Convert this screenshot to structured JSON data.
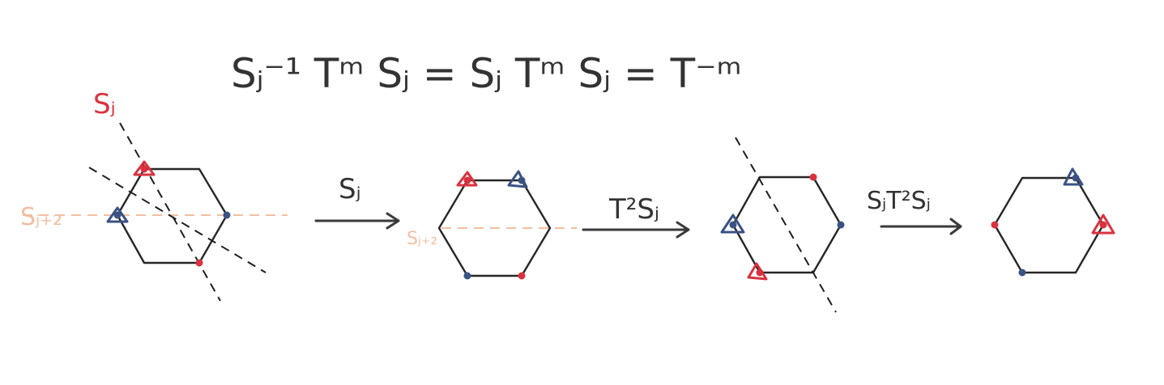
{
  "equation": "Sⱼ⁻¹ Tᵐ Sⱼ = Sⱼ Tᵐ Sⱼ = T⁻ᵐ",
  "labels": {
    "reflection_axis": "Sⱼ",
    "reflection_axis_shifted": "Sⱼ₊₂",
    "reflection_axis_shifted_small": "Sⱼ₊₂"
  },
  "arrows": [
    {
      "label": "Sⱼ"
    },
    {
      "label": "T²Sⱼ"
    },
    {
      "label": "SⱼT²Sⱼ"
    }
  ],
  "colors": {
    "ink": "#262626",
    "red": "#d9323f",
    "blue": "#3a5284",
    "peach": "#f2bfa0"
  },
  "marker_icons": [
    "red-triangle-marker",
    "blue-triangle-marker",
    "red-dot-marker",
    "blue-dot-marker"
  ]
}
